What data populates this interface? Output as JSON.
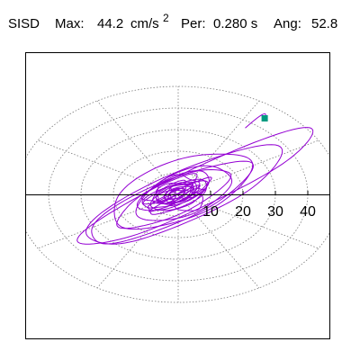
{
  "header": {
    "code": "SISD",
    "max_label": "Max:",
    "max_value": "44.2",
    "max_unit": "cm/s",
    "max_unit_exp": "2",
    "per_label": "Per:",
    "per_value": "0.280 s",
    "ang_label": "Ang:",
    "ang_value": "52.8"
  },
  "colors": {
    "trace": "#9400d3",
    "marker": "#009a80",
    "grid": "#7a7a7a",
    "axis": "#000000",
    "frame": "#000000"
  },
  "chart_data": {
    "type": "scatter",
    "plot_style": "polar orbit (particle motion) plot",
    "title": "",
    "units": "cm/s²",
    "max_amplitude": 44.2,
    "period_s": 0.28,
    "angle_deg": 52.8,
    "rlim": [
      0,
      50
    ],
    "grid": true,
    "grid_rings": [
      10,
      20,
      30,
      40,
      50
    ],
    "grid_spoke_step_deg": 30,
    "tick_labels": [
      "10",
      "20",
      "30",
      "40"
    ],
    "orbit_major_axis_deg": 36,
    "orbit": [
      {
        "semi_major": 44,
        "semi_minor": 8.5,
        "offset_x": 6.0,
        "offset_y": 3.0
      },
      {
        "semi_major": 36,
        "semi_minor": 11,
        "offset_x": 1.5,
        "offset_y": -1.0
      },
      {
        "semi_major": 30,
        "semi_minor": 9,
        "offset_x": -3.0,
        "offset_y": -4.0
      },
      {
        "semi_major": 25,
        "semi_minor": 12,
        "offset_x": 0.5,
        "offset_y": 2.0
      },
      {
        "semi_major": 21,
        "semi_minor": 7,
        "offset_x": -1.5,
        "offset_y": -1.5
      },
      {
        "semi_major": 17,
        "semi_minor": 9,
        "offset_x": 2.0,
        "offset_y": 0.5
      },
      {
        "semi_major": 13,
        "semi_minor": 6,
        "offset_x": -1.0,
        "offset_y": 1.5
      },
      {
        "semi_major": 10,
        "semi_minor": 5,
        "offset_x": 0.5,
        "offset_y": -0.5
      },
      {
        "semi_major": 7,
        "semi_minor": 4,
        "offset_x": -0.5,
        "offset_y": 0.5
      },
      {
        "semi_major": 5,
        "semi_minor": 3,
        "offset_x": 0.0,
        "offset_y": 0.0
      }
    ],
    "peak_point": {
      "x": 26.7,
      "y": 35.2
    }
  }
}
